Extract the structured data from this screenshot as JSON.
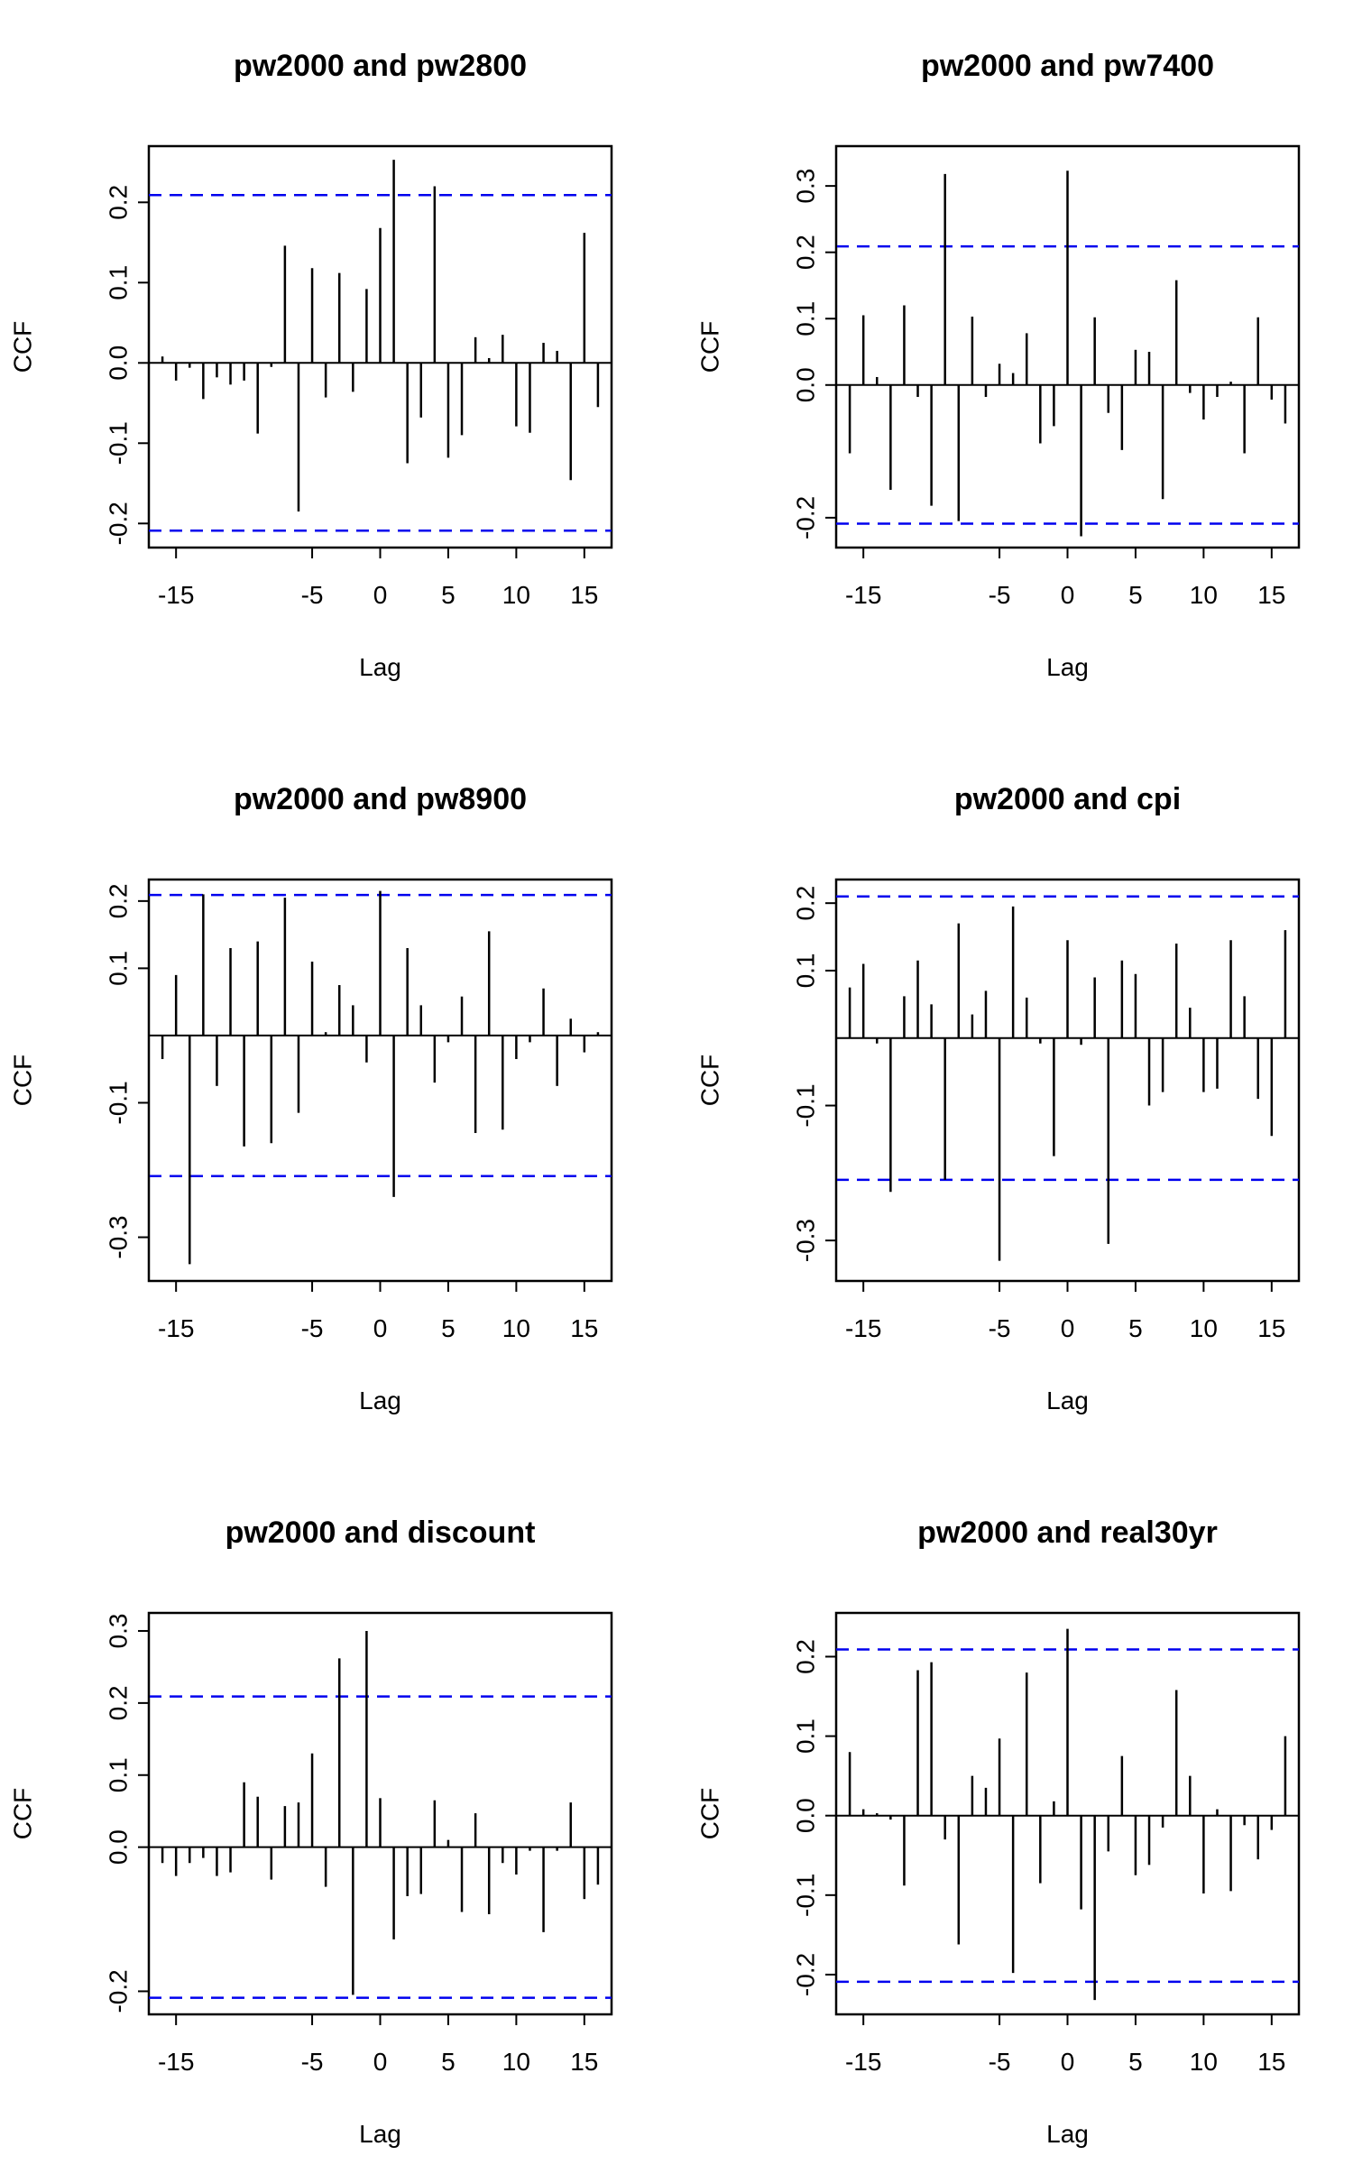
{
  "colors": {
    "ci": "#0000ee",
    "bars": "#000000"
  },
  "chart_data": [
    {
      "type": "bar",
      "title": "pw2000 and pw2800",
      "xlabel": "Lag",
      "ylabel": "CCF",
      "xlim": [
        -17,
        17
      ],
      "ylim": [
        -0.23,
        0.27
      ],
      "xticks": [
        -15,
        -5,
        0,
        5,
        10,
        15
      ],
      "yticks": [
        -0.2,
        -0.1,
        0.0,
        0.1,
        0.2
      ],
      "ytick_labels": [
        "-0.2",
        "-0.1",
        "0.0",
        "0.1",
        "0.2"
      ],
      "ci": 0.209,
      "x": [
        -16,
        -15,
        -14,
        -13,
        -12,
        -11,
        -10,
        -9,
        -8,
        -7,
        -6,
        -5,
        -4,
        -3,
        -2,
        -1,
        0,
        1,
        2,
        3,
        4,
        5,
        6,
        7,
        8,
        9,
        10,
        11,
        12,
        13,
        14,
        15,
        16
      ],
      "values": [
        0.008,
        -0.022,
        -0.006,
        -0.045,
        -0.018,
        -0.027,
        -0.022,
        -0.088,
        -0.005,
        0.146,
        -0.185,
        0.118,
        -0.043,
        0.112,
        -0.036,
        0.092,
        0.168,
        0.253,
        -0.125,
        -0.068,
        0.22,
        -0.118,
        -0.09,
        0.032,
        0.006,
        0.035,
        -0.079,
        -0.087,
        0.025,
        0.015,
        -0.146,
        0.162,
        -0.055
      ]
    },
    {
      "type": "bar",
      "title": "pw2000 and pw7400",
      "xlabel": "Lag",
      "ylabel": "CCF",
      "xlim": [
        -17,
        17
      ],
      "ylim": [
        -0.245,
        0.36
      ],
      "xticks": [
        -15,
        -5,
        0,
        5,
        10,
        15
      ],
      "yticks": [
        -0.2,
        0.0,
        0.1,
        0.2,
        0.3
      ],
      "ytick_labels": [
        "-0.2",
        "0.0",
        "0.1",
        "0.2",
        "0.3"
      ],
      "ci": 0.209,
      "x": [
        -16,
        -15,
        -14,
        -13,
        -12,
        -11,
        -10,
        -9,
        -8,
        -7,
        -6,
        -5,
        -4,
        -3,
        -2,
        -1,
        0,
        1,
        2,
        3,
        4,
        5,
        6,
        7,
        8,
        9,
        10,
        11,
        12,
        13,
        14,
        15,
        16
      ],
      "values": [
        -0.103,
        0.105,
        0.012,
        -0.158,
        0.12,
        -0.018,
        -0.182,
        0.318,
        -0.205,
        0.103,
        -0.018,
        0.032,
        0.018,
        0.078,
        -0.088,
        -0.062,
        0.323,
        -0.228,
        0.102,
        -0.042,
        -0.098,
        0.053,
        0.05,
        -0.172,
        0.158,
        -0.012,
        -0.052,
        -0.018,
        0.005,
        -0.103,
        0.102,
        -0.022,
        -0.058
      ]
    },
    {
      "type": "bar",
      "title": "pw2000 and pw8900",
      "xlabel": "Lag",
      "ylabel": "CCF",
      "xlim": [
        -17,
        17
      ],
      "ylim": [
        -0.365,
        0.232
      ],
      "xticks": [
        -15,
        -5,
        0,
        5,
        10,
        15
      ],
      "yticks": [
        -0.3,
        -0.1,
        0.1,
        0.2
      ],
      "ytick_labels": [
        "-0.3",
        "-0.1",
        "0.1",
        "0.2"
      ],
      "ci": 0.209,
      "x": [
        -16,
        -15,
        -14,
        -13,
        -12,
        -11,
        -10,
        -9,
        -8,
        -7,
        -6,
        -5,
        -4,
        -3,
        -2,
        -1,
        0,
        1,
        2,
        3,
        4,
        5,
        6,
        7,
        8,
        9,
        10,
        11,
        12,
        13,
        14,
        15,
        16
      ],
      "values": [
        -0.035,
        0.09,
        -0.34,
        0.21,
        -0.075,
        0.13,
        -0.165,
        0.14,
        -0.16,
        0.205,
        -0.115,
        0.11,
        0.005,
        0.075,
        0.045,
        -0.04,
        0.215,
        -0.24,
        0.13,
        0.045,
        -0.07,
        -0.01,
        0.058,
        -0.145,
        0.155,
        -0.14,
        -0.035,
        -0.01,
        0.07,
        -0.075,
        0.025,
        -0.025,
        0.005
      ]
    },
    {
      "type": "bar",
      "title": "pw2000 and cpi",
      "xlabel": "Lag",
      "ylabel": "CCF",
      "xlim": [
        -17,
        17
      ],
      "ylim": [
        -0.36,
        0.235
      ],
      "xticks": [
        -15,
        -5,
        0,
        5,
        10,
        15
      ],
      "yticks": [
        -0.3,
        -0.1,
        0.1,
        0.2
      ],
      "ytick_labels": [
        "-0.3",
        "-0.1",
        "0.1",
        "0.2"
      ],
      "ci": 0.21,
      "x": [
        -16,
        -15,
        -14,
        -13,
        -12,
        -11,
        -10,
        -9,
        -8,
        -7,
        -6,
        -5,
        -4,
        -3,
        -2,
        -1,
        0,
        1,
        2,
        3,
        4,
        5,
        6,
        7,
        8,
        9,
        10,
        11,
        12,
        13,
        14,
        15,
        16
      ],
      "values": [
        0.075,
        0.11,
        -0.008,
        -0.228,
        0.062,
        0.115,
        0.05,
        -0.21,
        0.17,
        0.035,
        0.07,
        -0.33,
        0.195,
        0.06,
        -0.008,
        -0.175,
        0.145,
        -0.01,
        0.09,
        -0.305,
        0.115,
        0.095,
        -0.1,
        -0.08,
        0.14,
        0.045,
        -0.08,
        -0.075,
        0.145,
        0.062,
        -0.09,
        -0.145,
        0.16
      ]
    },
    {
      "type": "bar",
      "title": "pw2000 and discount",
      "xlabel": "Lag",
      "ylabel": "CCF",
      "xlim": [
        -17,
        17
      ],
      "ylim": [
        -0.232,
        0.325
      ],
      "xticks": [
        -15,
        -5,
        0,
        5,
        10,
        15
      ],
      "yticks": [
        -0.2,
        0.0,
        0.1,
        0.2,
        0.3
      ],
      "ytick_labels": [
        "-0.2",
        "0.0",
        "0.1",
        "0.2",
        "0.3"
      ],
      "ci": 0.209,
      "x": [
        -16,
        -15,
        -14,
        -13,
        -12,
        -11,
        -10,
        -9,
        -8,
        -7,
        -6,
        -5,
        -4,
        -3,
        -2,
        -1,
        0,
        1,
        2,
        3,
        4,
        5,
        6,
        7,
        8,
        9,
        10,
        11,
        12,
        13,
        14,
        15,
        16
      ],
      "values": [
        -0.022,
        -0.04,
        -0.022,
        -0.015,
        -0.04,
        -0.035,
        0.09,
        0.07,
        -0.045,
        0.057,
        0.062,
        0.13,
        -0.055,
        0.262,
        -0.205,
        0.3,
        0.068,
        -0.128,
        -0.068,
        -0.065,
        0.065,
        0.01,
        -0.09,
        0.047,
        -0.093,
        -0.022,
        -0.038,
        -0.005,
        -0.118,
        -0.005,
        0.062,
        -0.072,
        -0.052
      ]
    },
    {
      "type": "bar",
      "title": "pw2000 and real30yr",
      "xlabel": "Lag",
      "ylabel": "CCF",
      "xlim": [
        -17,
        17
      ],
      "ylim": [
        -0.25,
        0.255
      ],
      "xticks": [
        -15,
        -5,
        0,
        5,
        10,
        15
      ],
      "yticks": [
        -0.2,
        -0.1,
        0.0,
        0.1,
        0.2
      ],
      "ytick_labels": [
        "-0.2",
        "-0.1",
        "0.0",
        "0.1",
        "0.2"
      ],
      "ci": 0.209,
      "x": [
        -16,
        -15,
        -14,
        -13,
        -12,
        -11,
        -10,
        -9,
        -8,
        -7,
        -6,
        -5,
        -4,
        -3,
        -2,
        -1,
        0,
        1,
        2,
        3,
        4,
        5,
        6,
        7,
        8,
        9,
        10,
        11,
        12,
        13,
        14,
        15,
        16
      ],
      "values": [
        0.08,
        0.008,
        0.003,
        -0.005,
        -0.088,
        0.183,
        0.193,
        -0.03,
        -0.162,
        0.05,
        0.035,
        0.097,
        -0.198,
        0.18,
        -0.085,
        0.018,
        0.235,
        -0.118,
        -0.232,
        -0.045,
        0.075,
        -0.075,
        -0.062,
        -0.015,
        0.158,
        0.05,
        -0.098,
        0.008,
        -0.095,
        -0.012,
        -0.055,
        -0.018,
        0.1
      ]
    }
  ]
}
